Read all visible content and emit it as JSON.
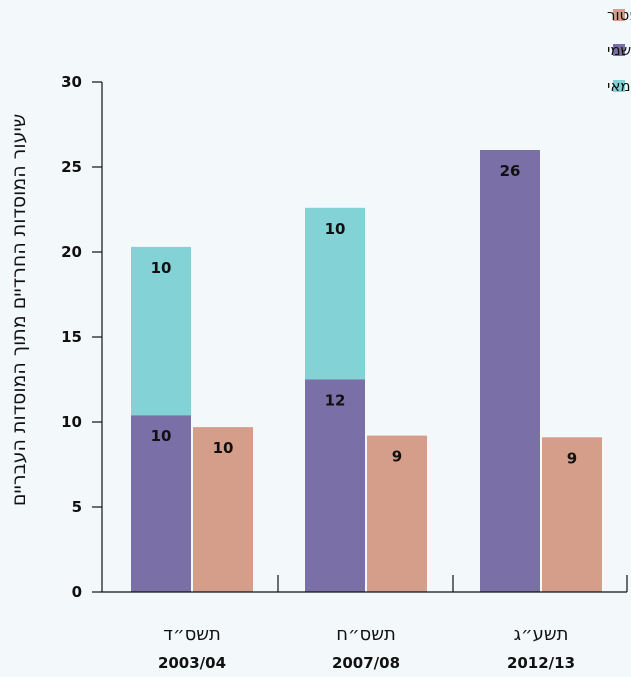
{
  "chart_data": {
    "type": "bar",
    "stacked": true,
    "ylabel": "שיעור המוסדות החרדיים מתוך המוסדות העבריים",
    "ylim": [
      0,
      30
    ],
    "yticks": [
      0,
      5,
      10,
      15,
      20,
      25,
      30
    ],
    "categories": [
      {
        "label": "תשס״ד",
        "sub": "2003/04"
      },
      {
        "label": "תשס״ח",
        "sub": "2007/08"
      },
      {
        "label": "תשע״ג",
        "sub": "2012/13"
      }
    ],
    "legend_position": "top-right",
    "legend": [
      {
        "name": "פטור",
        "color": "#d49e8a"
      },
      {
        "name": "מוכר שאינו רשמי",
        "color": "#7a6fa6"
      },
      {
        "name": "עצמאי",
        "color": "#82d2d6"
      }
    ],
    "bars": [
      {
        "category": 0,
        "slot": "left",
        "segments": [
          {
            "series": "מוכר שאינו רשמי",
            "value": 10.4,
            "label": "10",
            "color": "#7a6fa6"
          },
          {
            "series": "עצמאי",
            "value": 9.9,
            "label": "10",
            "color": "#82d2d6"
          }
        ]
      },
      {
        "category": 0,
        "slot": "right",
        "segments": [
          {
            "series": "פטור",
            "value": 9.7,
            "label": "10",
            "color": "#d49e8a"
          }
        ]
      },
      {
        "category": 1,
        "slot": "left",
        "segments": [
          {
            "series": "מוכר שאינו רשמי",
            "value": 12.5,
            "label": "12",
            "color": "#7a6fa6"
          },
          {
            "series": "עצמאי",
            "value": 10.1,
            "label": "10",
            "color": "#82d2d6"
          }
        ]
      },
      {
        "category": 1,
        "slot": "right",
        "segments": [
          {
            "series": "פטור",
            "value": 9.2,
            "label": "9",
            "color": "#d49e8a"
          }
        ]
      },
      {
        "category": 2,
        "slot": "left",
        "segments": [
          {
            "series": "מוכר שאינו רשמי",
            "value": 26.0,
            "label": "26",
            "color": "#7a6fa6"
          }
        ]
      },
      {
        "category": 2,
        "slot": "right",
        "segments": [
          {
            "series": "פטור",
            "value": 9.1,
            "label": "9",
            "color": "#d49e8a"
          }
        ]
      }
    ]
  }
}
